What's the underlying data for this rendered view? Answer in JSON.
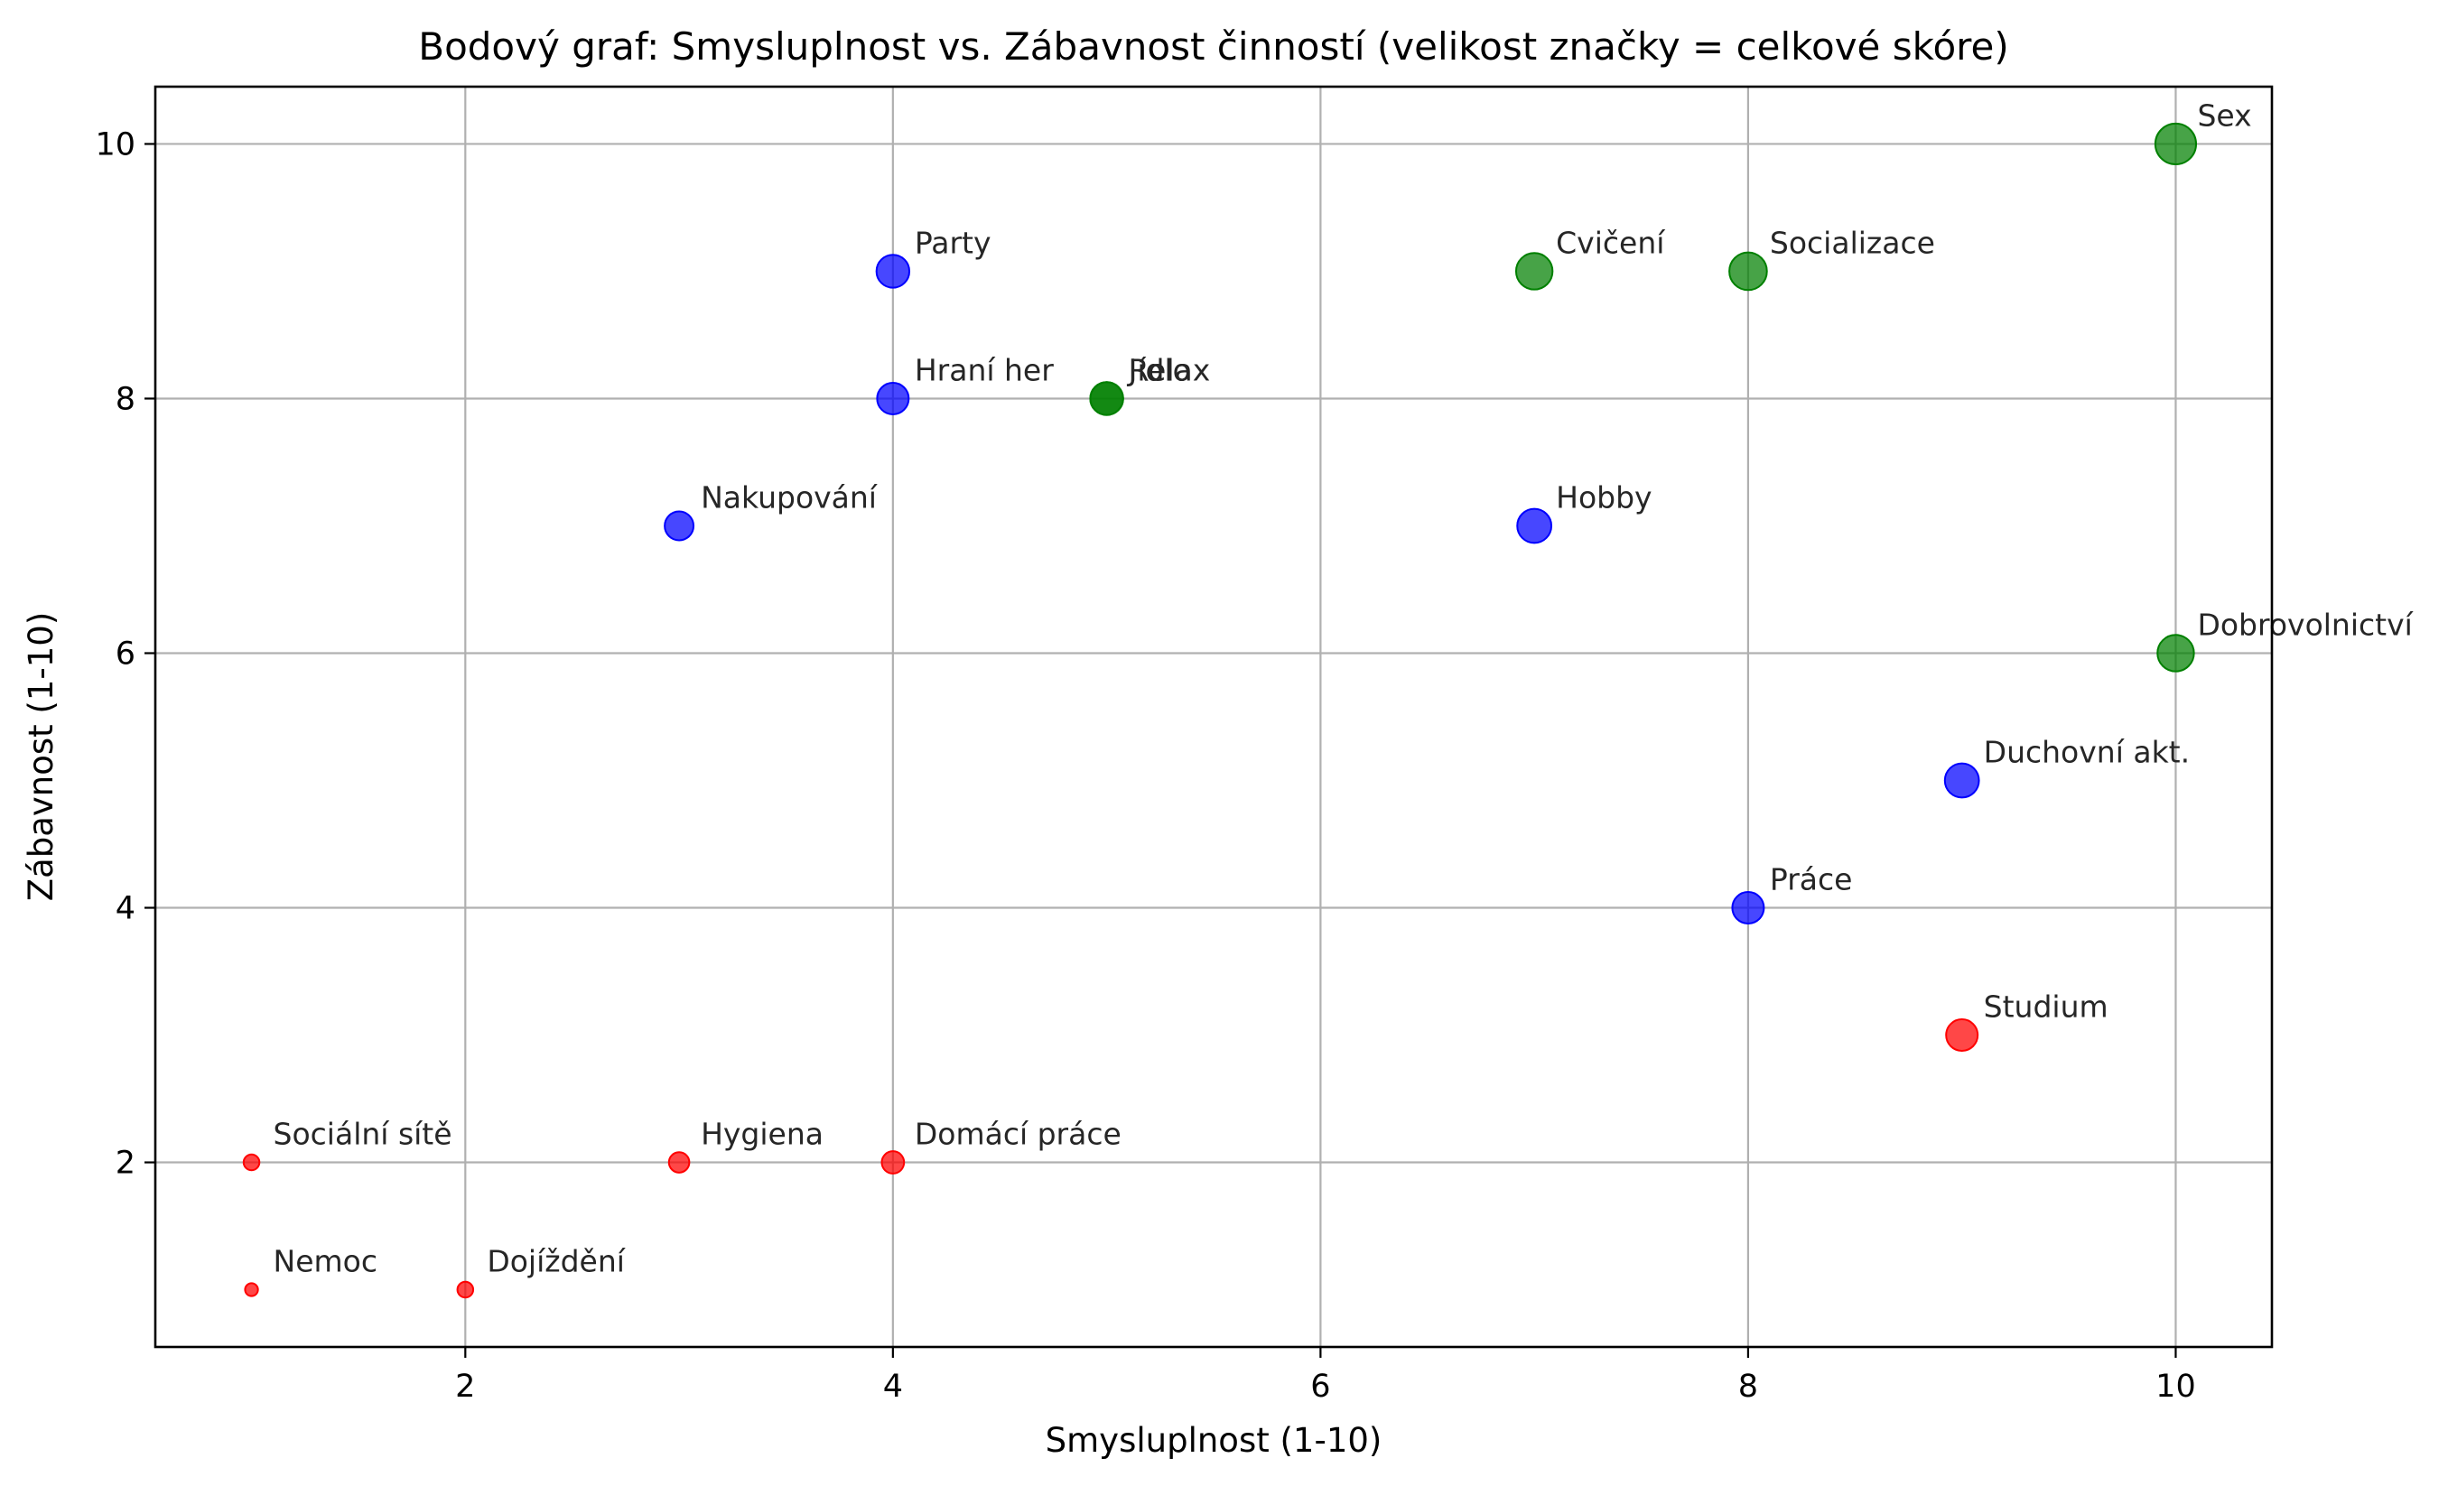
{
  "chart_data": {
    "type": "scatter",
    "title": "Bodový graf: Smysluplnost vs. Zábavnost činností (velikost značky = celkové skóre)",
    "xlabel": "Smysluplnost (1-10)",
    "ylabel": "Zábavnost (1-10)",
    "xlim": [
      0.55,
      10.45
    ],
    "ylim": [
      0.55,
      10.45
    ],
    "xticks": [
      2,
      4,
      6,
      8,
      10
    ],
    "yticks": [
      2,
      4,
      6,
      8,
      10
    ],
    "grid": true,
    "colors": {
      "red": "#ff0000",
      "blue": "#0000ff",
      "green": "#008000"
    },
    "points": [
      {
        "label": "Sex",
        "x": 10,
        "y": 10,
        "score": 20,
        "color": "green"
      },
      {
        "label": "Party",
        "x": 4,
        "y": 9,
        "score": 13,
        "color": "blue"
      },
      {
        "label": "Cvičení",
        "x": 7,
        "y": 9,
        "score": 16,
        "color": "green"
      },
      {
        "label": "Socializace",
        "x": 8,
        "y": 9,
        "score": 17,
        "color": "green"
      },
      {
        "label": "Hraní her",
        "x": 4,
        "y": 8,
        "score": 12,
        "color": "blue"
      },
      {
        "label": "Jídlo",
        "x": 5,
        "y": 8,
        "score": 13,
        "color": "green"
      },
      {
        "label": "Relax",
        "x": 5,
        "y": 8,
        "score": 13,
        "color": "green"
      },
      {
        "label": "Nakupování",
        "x": 3,
        "y": 7,
        "score": 10,
        "color": "blue"
      },
      {
        "label": "Hobby",
        "x": 7,
        "y": 7,
        "score": 14,
        "color": "blue"
      },
      {
        "label": "Dobrovolnictví",
        "x": 10,
        "y": 6,
        "score": 16,
        "color": "green"
      },
      {
        "label": "Duchovní akt.",
        "x": 9,
        "y": 5,
        "score": 14,
        "color": "blue"
      },
      {
        "label": "Práce",
        "x": 8,
        "y": 4,
        "score": 12,
        "color": "blue"
      },
      {
        "label": "Studium",
        "x": 9,
        "y": 3,
        "score": 12,
        "color": "red"
      },
      {
        "label": "Sociální sítě",
        "x": 1,
        "y": 2,
        "score": 3,
        "color": "red"
      },
      {
        "label": "Hygiena",
        "x": 3,
        "y": 2,
        "score": 5,
        "color": "red"
      },
      {
        "label": "Domácí práce",
        "x": 4,
        "y": 2,
        "score": 6,
        "color": "red"
      },
      {
        "label": "Nemoc",
        "x": 1,
        "y": 1,
        "score": 2,
        "color": "red"
      },
      {
        "label": "Dojíždění",
        "x": 2,
        "y": 1,
        "score": 3,
        "color": "red"
      }
    ]
  }
}
